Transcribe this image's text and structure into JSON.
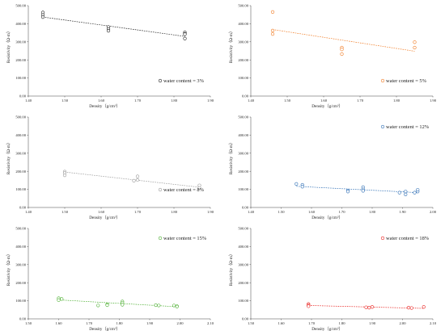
{
  "chart_data": [
    {
      "type": "scatter",
      "xlabel": "Density（g/cm³）",
      "ylabel": "Resistivity（Ω·m）",
      "xlim": [
        1.4,
        1.9
      ],
      "ylim": [
        0,
        500
      ],
      "xticks": [
        "1.40",
        "1.50",
        "1.60",
        "1.70",
        "1.80",
        "1.90"
      ],
      "yticks": [
        "0.00",
        "100.00",
        "200.00",
        "300.00",
        "400.00",
        "500.00"
      ],
      "color": "#222222",
      "series": [
        {
          "name": "water content = 3%",
          "points": [
            [
              1.44,
              462
            ],
            [
              1.44,
              448
            ],
            [
              1.44,
              437
            ],
            [
              1.62,
              382
            ],
            [
              1.62,
              371
            ],
            [
              1.62,
              361
            ],
            [
              1.83,
              352
            ],
            [
              1.83,
              344
            ],
            [
              1.83,
              342
            ],
            [
              1.83,
              318
            ]
          ],
          "trend": [
            [
              1.44,
              437
            ],
            [
              1.83,
              330
            ]
          ]
        }
      ]
    },
    {
      "type": "scatter",
      "xlabel": "Density（g/cm³）",
      "ylabel": "Resistivity（Ω·m）",
      "xlim": [
        1.4,
        1.9
      ],
      "ylim": [
        0,
        500
      ],
      "xticks": [
        "1.40",
        "1.50",
        "1.60",
        "1.70",
        "1.80",
        "1.90"
      ],
      "yticks": [
        "0.00",
        "100.00",
        "200.00",
        "300.00",
        "400.00",
        "500.00"
      ],
      "color": "#f07a22",
      "series": [
        {
          "name": "water content = 5%",
          "points": [
            [
              1.46,
              465
            ],
            [
              1.46,
              362
            ],
            [
              1.46,
              343
            ],
            [
              1.65,
              268
            ],
            [
              1.65,
              258
            ],
            [
              1.65,
              232
            ],
            [
              1.85,
              298
            ],
            [
              1.85,
              268
            ]
          ],
          "trend": [
            [
              1.46,
              368
            ],
            [
              1.85,
              248
            ]
          ]
        }
      ]
    },
    {
      "type": "scatter",
      "xlabel": "Density（g/cm³）",
      "ylabel": "Resistivity（Ω·m）",
      "xlim": [
        1.4,
        1.9
      ],
      "ylim": [
        0,
        500
      ],
      "xticks": [
        "1.40",
        "1.50",
        "1.60",
        "1.70",
        "1.80",
        "1.90"
      ],
      "yticks": [
        "0.00",
        "100.00",
        "200.00",
        "300.00",
        "400.00",
        "500.00"
      ],
      "color": "#9a9a9a",
      "series": [
        {
          "name": "water content = 8%",
          "points": [
            [
              1.5,
              198
            ],
            [
              1.5,
              190
            ],
            [
              1.5,
              178
            ],
            [
              1.69,
              148
            ],
            [
              1.7,
              172
            ],
            [
              1.7,
              152
            ],
            [
              1.87,
              122
            ],
            [
              1.87,
              108
            ]
          ],
          "trend": [
            [
              1.5,
              196
            ],
            [
              1.87,
              112
            ]
          ]
        }
      ]
    },
    {
      "type": "scatter",
      "xlabel": "Density（g/cm³）",
      "ylabel": "Resistivity（Ω·m）",
      "xlim": [
        1.4,
        2.0
      ],
      "ylim": [
        0,
        500
      ],
      "xticks": [
        "1.40",
        "1.50",
        "1.60",
        "1.70",
        "1.80",
        "1.90",
        "2.00"
      ],
      "yticks": [
        "0.00",
        "100.00",
        "200.00",
        "300.00",
        "400.00",
        "500.00"
      ],
      "color": "#2f6fb5",
      "series": [
        {
          "name": "water content = 12%",
          "points": [
            [
              1.55,
              130
            ],
            [
              1.57,
              125
            ],
            [
              1.57,
              115
            ],
            [
              1.72,
              93
            ],
            [
              1.72,
              88
            ],
            [
              1.77,
              112
            ],
            [
              1.77,
              100
            ],
            [
              1.77,
              92
            ],
            [
              1.89,
              82
            ],
            [
              1.91,
              88
            ],
            [
              1.91,
              72
            ],
            [
              1.94,
              82
            ],
            [
              1.95,
              88
            ],
            [
              1.95,
              98
            ]
          ],
          "trend": [
            [
              1.55,
              117
            ],
            [
              1.95,
              82
            ]
          ]
        }
      ]
    },
    {
      "type": "scatter",
      "xlabel": "Density（g/cm³）",
      "ylabel": "Resistivity（Ω·m）",
      "xlim": [
        1.5,
        2.1
      ],
      "ylim": [
        0,
        500
      ],
      "xticks": [
        "1.50",
        "1.60",
        "1.70",
        "1.80",
        "1.90",
        "2.00",
        "2.10"
      ],
      "yticks": [
        "0.00",
        "100.00",
        "200.00",
        "300.00",
        "400.00",
        "500.00"
      ],
      "color": "#4caf30",
      "series": [
        {
          "name": "water content = 15%",
          "points": [
            [
              1.6,
              114
            ],
            [
              1.6,
              104
            ],
            [
              1.61,
              110
            ],
            [
              1.73,
              74
            ],
            [
              1.76,
              80
            ],
            [
              1.76,
              76
            ],
            [
              1.81,
              96
            ],
            [
              1.81,
              88
            ],
            [
              1.81,
              78
            ],
            [
              1.92,
              76
            ],
            [
              1.93,
              74
            ],
            [
              1.98,
              74
            ],
            [
              1.99,
              70
            ],
            [
              1.99,
              68
            ]
          ],
          "trend": [
            [
              1.6,
              105
            ],
            [
              1.99,
              67
            ]
          ]
        }
      ]
    },
    {
      "type": "scatter",
      "xlabel": "Density（g/cm³）",
      "ylabel": "Resistivity（Ω·m）",
      "xlim": [
        1.5,
        2.1
      ],
      "ylim": [
        0,
        500
      ],
      "xticks": [
        "1.50",
        "1.60",
        "1.70",
        "1.80",
        "1.90",
        "2.00",
        "2.10"
      ],
      "yticks": [
        "0.00",
        "100.00",
        "200.00",
        "300.00",
        "400.00",
        "500.00"
      ],
      "color": "#e8201e",
      "series": [
        {
          "name": "water content = 18%",
          "points": [
            [
              1.69,
              82
            ],
            [
              1.69,
              76
            ],
            [
              1.69,
              70
            ],
            [
              1.88,
              64
            ],
            [
              1.89,
              62
            ],
            [
              1.9,
              66
            ],
            [
              2.02,
              62
            ],
            [
              2.03,
              60
            ],
            [
              2.07,
              66
            ]
          ],
          "trend": [
            [
              1.69,
              74
            ],
            [
              2.07,
              58
            ]
          ]
        }
      ]
    }
  ]
}
